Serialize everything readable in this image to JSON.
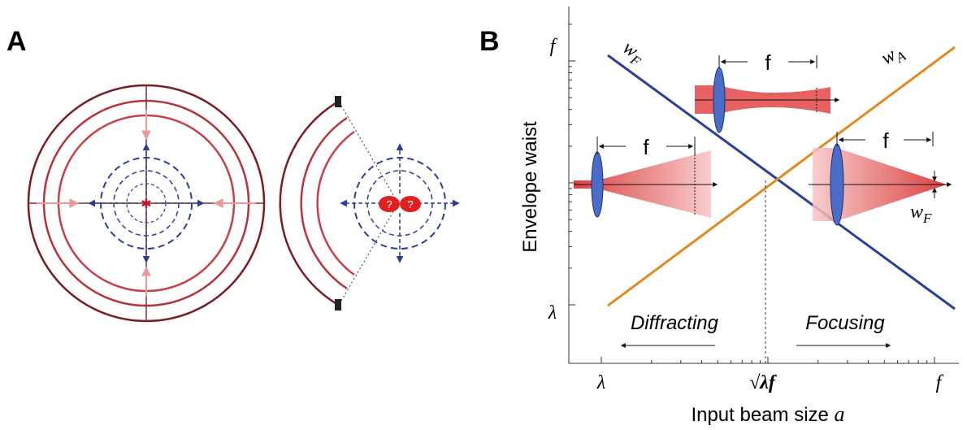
{
  "panel_a": {
    "label": "A",
    "markers": [
      "?",
      "?"
    ]
  },
  "panel_b": {
    "label": "B",
    "y_axis": {
      "title": "Envelope waist",
      "ticks": [
        "f",
        "λ"
      ]
    },
    "x_axis": {
      "title": "Input beam size",
      "variable": "a",
      "ticks": [
        "λ",
        "√λf",
        "f"
      ]
    },
    "lines": [
      {
        "symbol": "w",
        "subscript": "F"
      },
      {
        "symbol": "w",
        "subscript": "A"
      }
    ],
    "insets": [
      {
        "label": "f"
      },
      {
        "label": "f"
      },
      {
        "label": "f"
      }
    ],
    "waist": {
      "symbol": "w",
      "subscript": "F"
    },
    "regimes": [
      "Diffracting",
      "Focusing"
    ]
  }
}
